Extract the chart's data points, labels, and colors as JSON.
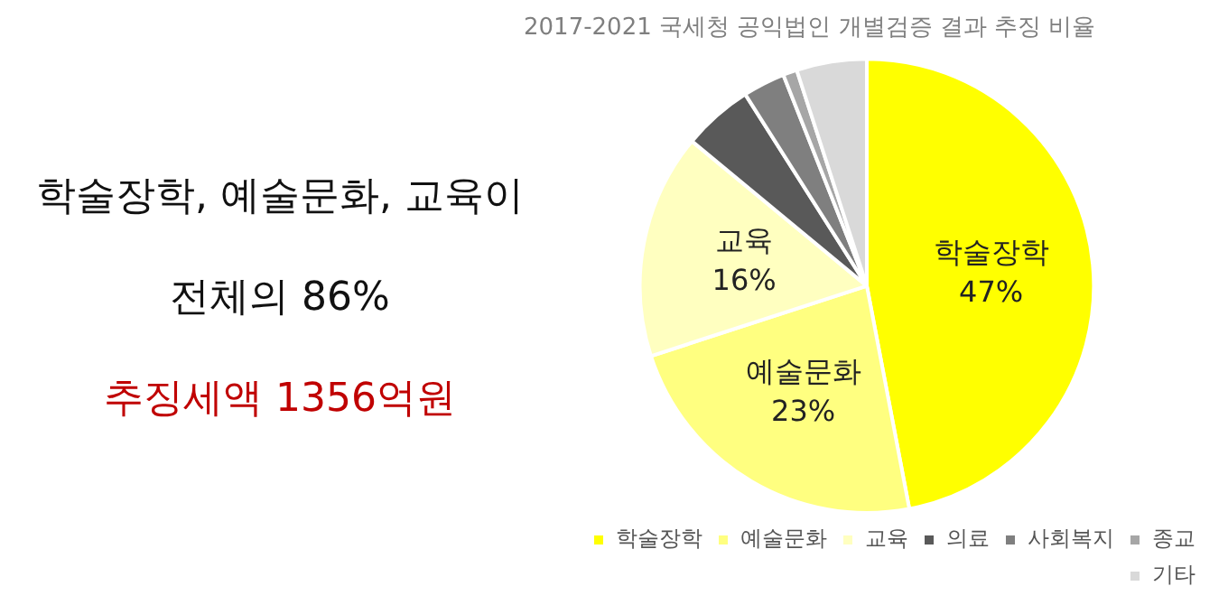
{
  "chart_data": {
    "type": "pie",
    "title": "2017-2021 국세청 공익법인 개별검증 결과 추징 비율",
    "categories": [
      "학술장학",
      "예술문화",
      "교육",
      "의료",
      "사회복지",
      "종교",
      "기타"
    ],
    "values": [
      47,
      23,
      16,
      5,
      3,
      1,
      5
    ],
    "colors": [
      "#ffff00",
      "#ffff80",
      "#ffffc0",
      "#595959",
      "#7f7f7f",
      "#a6a6a6",
      "#d9d9d9"
    ],
    "value_labels": [
      "47%",
      "23%",
      "16%",
      null,
      null,
      null,
      null
    ],
    "legend": "bottom right",
    "annotations": [
      "학술장학, 예술문화, 교육이",
      "전체의 86%",
      "추징세액 1356억원"
    ]
  }
}
